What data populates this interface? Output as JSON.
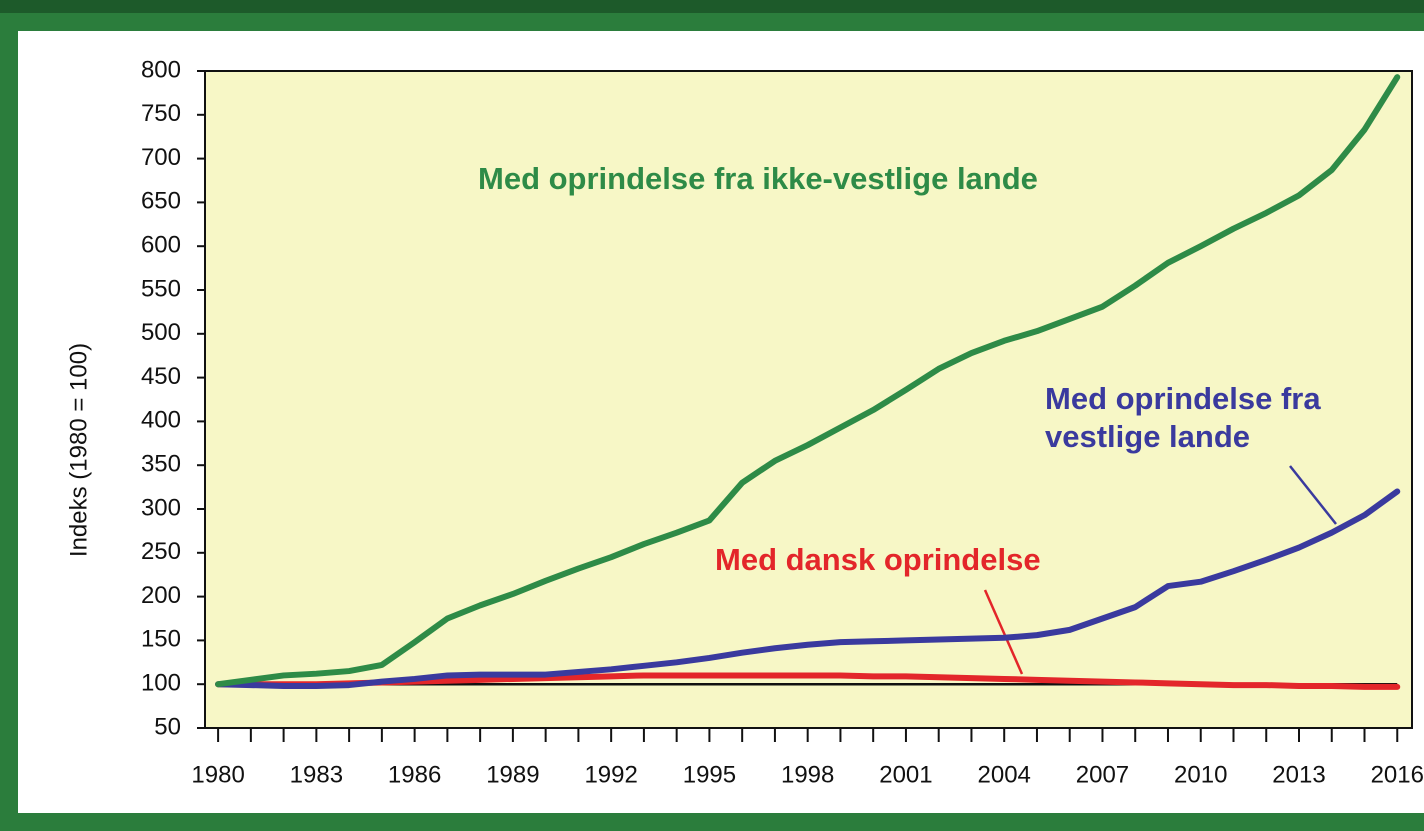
{
  "chart_data": {
    "type": "line",
    "y_label": "Indeks (1980 = 100)",
    "x": [
      1980,
      1981,
      1982,
      1983,
      1984,
      1985,
      1986,
      1987,
      1988,
      1989,
      1990,
      1991,
      1992,
      1993,
      1994,
      1995,
      1996,
      1997,
      1998,
      1999,
      2000,
      2001,
      2002,
      2003,
      2004,
      2005,
      2006,
      2007,
      2008,
      2009,
      2010,
      2011,
      2012,
      2013,
      2014,
      2015,
      2016
    ],
    "series": [
      {
        "name": "Med oprindelse fra ikke-vestlige lande",
        "color": "#2e8b47",
        "values": [
          100,
          105,
          110,
          112,
          115,
          122,
          148,
          175,
          190,
          203,
          218,
          232,
          245,
          260,
          273,
          287,
          330,
          355,
          373,
          393,
          413,
          436,
          460,
          478,
          492,
          503,
          517,
          531,
          555,
          581,
          600,
          620,
          638,
          658,
          687,
          733,
          793
        ]
      },
      {
        "name": "Med oprindelse fra vestlige lande",
        "color": "#3a3a9e",
        "values": [
          100,
          99,
          98,
          98,
          99,
          103,
          106,
          110,
          111,
          111,
          111,
          114,
          117,
          121,
          125,
          130,
          136,
          141,
          145,
          148,
          149,
          150,
          151,
          152,
          153,
          156,
          162,
          175,
          188,
          212,
          217,
          229,
          242,
          256,
          273,
          293,
          320
        ]
      },
      {
        "name": "Med dansk oprindelse",
        "color": "#e3262a",
        "values": [
          100,
          100,
          100,
          100,
          101,
          102,
          103,
          104,
          105,
          106,
          107,
          108,
          109,
          110,
          110,
          110,
          110,
          110,
          110,
          110,
          109,
          109,
          108,
          107,
          106,
          105,
          104,
          103,
          102,
          101,
          100,
          99,
          99,
          98,
          98,
          97,
          97
        ]
      }
    ],
    "baseline": 100,
    "xlim": [
      1979.6,
      2016.45
    ],
    "xticks": [
      1980,
      1983,
      1986,
      1989,
      1992,
      1995,
      1998,
      2001,
      2004,
      2007,
      2010,
      2013,
      2016
    ],
    "ylim": [
      50,
      800
    ],
    "yticks": [
      50,
      100,
      150,
      200,
      250,
      300,
      350,
      400,
      450,
      500,
      550,
      600,
      650,
      700,
      750,
      800
    ]
  }
}
